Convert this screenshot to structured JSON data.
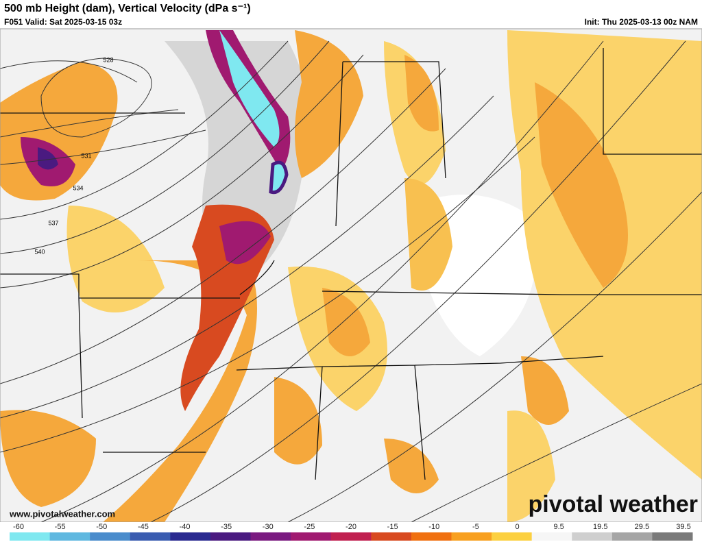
{
  "header": {
    "title": "500 mb Height (dam), Vertical Velocity (dPa s⁻¹)",
    "valid": "F051 Valid: Sat 2025-03-15 03z",
    "init": "Init: Thu 2025-03-13 00z NAM"
  },
  "contour_labels": [
    "528",
    "531",
    "534",
    "537",
    "540"
  ],
  "footer": {
    "website": "www.pivotalweather.com",
    "logo": "pivotal weather"
  },
  "colorbar": {
    "ticks": [
      -60,
      -55,
      -50,
      -45,
      -40,
      -35,
      -30,
      -25,
      -20,
      -15,
      -10,
      -5,
      0,
      9.5,
      19.5,
      29.5,
      39.5
    ],
    "colors": [
      "#7fe8f0",
      "#5fb8e0",
      "#4a8ccc",
      "#3a5cb0",
      "#2a2a90",
      "#4a1a80",
      "#7a1a80",
      "#a01a70",
      "#c02050",
      "#d84a20",
      "#f07010",
      "#f8a020",
      "#fcd040",
      "#f6f6f6",
      "#cfcfcf",
      "#a5a5a5",
      "#7a7a7a"
    ]
  }
}
